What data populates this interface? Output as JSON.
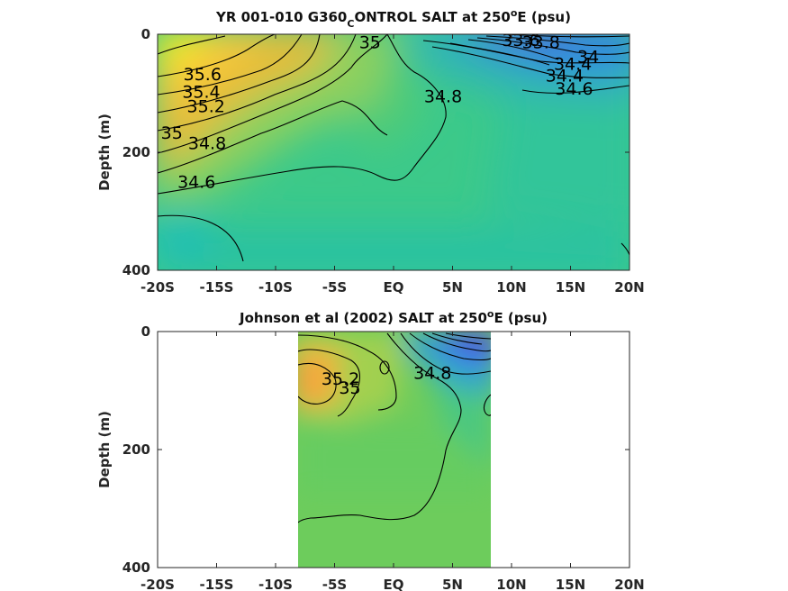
{
  "chart_data": [
    {
      "type": "contour",
      "title_main": "YR 001-010 G360",
      "title_sub": "C",
      "title_rest": "ONTROL SALT at 250",
      "title_sup": "o",
      "title_end": "E (psu)",
      "ylabel": "Depth (m)",
      "xlim": [
        -20,
        20
      ],
      "ylim": [
        400,
        0
      ],
      "xticks": [
        "-20S",
        "-15S",
        "-10S",
        "-5S",
        "EQ",
        "5N",
        "10N",
        "15N",
        "20N"
      ],
      "yticks": [
        "0",
        "200",
        "400"
      ],
      "data_extent_x": [
        -20,
        20
      ],
      "contour_levels": [
        33.6,
        33.8,
        34.0,
        34.4,
        34.6,
        34.8,
        35.0,
        35.2,
        35.4,
        35.6
      ],
      "contour_labels": [
        {
          "text": "35.6",
          "x": -16.2,
          "y": 78
        },
        {
          "text": "35.4",
          "x": -16.3,
          "y": 108
        },
        {
          "text": "35.2",
          "x": -15.9,
          "y": 132
        },
        {
          "text": "35",
          "x": -18.8,
          "y": 177
        },
        {
          "text": "34.8",
          "x": -15.8,
          "y": 195
        },
        {
          "text": "34.6",
          "x": -16.7,
          "y": 260
        },
        {
          "text": "35",
          "x": -2.0,
          "y": 24
        },
        {
          "text": "34.8",
          "x": 4.2,
          "y": 115
        },
        {
          "text": "33.6",
          "x": 10.8,
          "y": 20
        },
        {
          "text": "33.8",
          "x": 12.5,
          "y": 24
        },
        {
          "text": "34",
          "x": 16.5,
          "y": 48
        },
        {
          "text": "34.4",
          "x": 15.2,
          "y": 60
        },
        {
          "text": "34.4",
          "x": 14.5,
          "y": 80
        },
        {
          "text": "34.6",
          "x": 15.3,
          "y": 102
        }
      ]
    },
    {
      "type": "contour",
      "title_main": "Johnson et al (2002) SALT at 250",
      "title_sup": "o",
      "title_end": "E (psu)",
      "ylabel": "Depth (m)",
      "xlim": [
        -20,
        20
      ],
      "ylim": [
        400,
        0
      ],
      "xticks": [
        "-20S",
        "-15S",
        "-10S",
        "-5S",
        "EQ",
        "5N",
        "10N",
        "15N",
        "20N"
      ],
      "yticks": [
        "0",
        "200",
        "400"
      ],
      "data_extent_x": [
        -8,
        8.3
      ],
      "contour_labels": [
        {
          "text": "35.2",
          "x": -4.5,
          "y": 90
        },
        {
          "text": "35",
          "x": -3.7,
          "y": 105
        },
        {
          "text": "34.8",
          "x": 3.3,
          "y": 80
        }
      ]
    }
  ]
}
